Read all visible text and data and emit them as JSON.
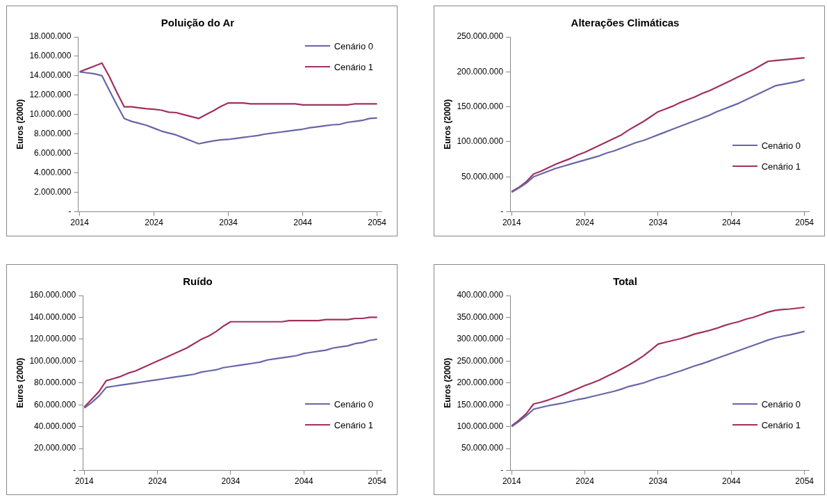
{
  "chart_data": [
    {
      "type": "line",
      "title": "Poluição do Ar",
      "ylabel": "Euros (2000)",
      "legend": "top right",
      "grid": false,
      "marker": "none",
      "line_style": "solid",
      "x": [
        2014,
        2015,
        2016,
        2017,
        2018,
        2019,
        2020,
        2021,
        2022,
        2023,
        2024,
        2025,
        2026,
        2027,
        2028,
        2029,
        2030,
        2031,
        2032,
        2033,
        2034,
        2035,
        2036,
        2037,
        2038,
        2039,
        2040,
        2041,
        2042,
        2043,
        2044,
        2045,
        2046,
        2047,
        2048,
        2049,
        2050,
        2051,
        2052,
        2053,
        2054
      ],
      "xlim": [
        2013.8,
        2054.6
      ],
      "xticks": [
        2014,
        2024,
        2034,
        2044,
        2054
      ],
      "ylim": [
        0,
        18000000
      ],
      "yticks": [
        {
          "value": 0,
          "label": "-"
        },
        {
          "value": 2000000,
          "label": "2.000.000"
        },
        {
          "value": 4000000,
          "label": "4.000.000"
        },
        {
          "value": 6000000,
          "label": "6.000.000"
        },
        {
          "value": 8000000,
          "label": "8.000.000"
        },
        {
          "value": 10000000,
          "label": "10.000.000"
        },
        {
          "value": 12000000,
          "label": "12.000.000"
        },
        {
          "value": 14000000,
          "label": "14.000.000"
        },
        {
          "value": 16000000,
          "label": "16.000.000"
        },
        {
          "value": 18000000,
          "label": "18.000.000"
        }
      ],
      "series": [
        {
          "name": "Cenário 0",
          "color": "#6666a8",
          "values": [
            14400000,
            14300000,
            14200000,
            14000000,
            12500000,
            11000000,
            9600000,
            9300000,
            9100000,
            8900000,
            8600000,
            8300000,
            8100000,
            7900000,
            7600000,
            7300000,
            7000000,
            7150000,
            7300000,
            7400000,
            7450000,
            7550000,
            7650000,
            7750000,
            7850000,
            8000000,
            8100000,
            8200000,
            8300000,
            8400000,
            8500000,
            8650000,
            8750000,
            8850000,
            8950000,
            9000000,
            9200000,
            9300000,
            9400000,
            9600000,
            9650000
          ]
        },
        {
          "name": "Cenário 1",
          "color": "#a0305e",
          "values": [
            14400000,
            14700000,
            15000000,
            15300000,
            13900000,
            12300000,
            10800000,
            10800000,
            10700000,
            10600000,
            10550000,
            10450000,
            10250000,
            10200000,
            10000000,
            9800000,
            9600000,
            10000000,
            10400000,
            10850000,
            11200000,
            11200000,
            11200000,
            11100000,
            11100000,
            11100000,
            11100000,
            11100000,
            11100000,
            11100000,
            11000000,
            11000000,
            11000000,
            11000000,
            11000000,
            11000000,
            11000000,
            11100000,
            11100000,
            11100000,
            11100000
          ]
        }
      ]
    },
    {
      "type": "line",
      "title": "Alterações Climáticas",
      "ylabel": "Euros (2000)",
      "legend": "bottom right",
      "grid": false,
      "marker": "none",
      "line_style": "solid",
      "x": [
        2014,
        2015,
        2016,
        2017,
        2018,
        2019,
        2020,
        2021,
        2022,
        2023,
        2024,
        2025,
        2026,
        2027,
        2028,
        2029,
        2030,
        2031,
        2032,
        2033,
        2034,
        2035,
        2036,
        2037,
        2038,
        2039,
        2040,
        2041,
        2042,
        2043,
        2044,
        2045,
        2046,
        2047,
        2048,
        2049,
        2050,
        2051,
        2052,
        2053,
        2054
      ],
      "xlim": [
        2013.8,
        2054.6
      ],
      "xticks": [
        2014,
        2024,
        2034,
        2044,
        2054
      ],
      "ylim": [
        0,
        250000000
      ],
      "yticks": [
        {
          "value": 0,
          "label": "-"
        },
        {
          "value": 50000000,
          "label": "50.000.000"
        },
        {
          "value": 100000000,
          "label": "100.000.000"
        },
        {
          "value": 150000000,
          "label": "150.000.000"
        },
        {
          "value": 200000000,
          "label": "200.000.000"
        },
        {
          "value": 250000000,
          "label": "250.000.000"
        }
      ],
      "series": [
        {
          "name": "Cenário 0",
          "color": "#6666a8",
          "values": [
            28000000,
            34000000,
            41000000,
            50000000,
            54000000,
            58000000,
            62000000,
            65000000,
            68000000,
            71000000,
            74000000,
            77000000,
            80000000,
            84000000,
            87000000,
            91000000,
            95000000,
            99000000,
            102000000,
            106000000,
            110000000,
            114000000,
            118000000,
            122000000,
            126000000,
            130000000,
            134000000,
            138000000,
            143000000,
            147000000,
            151000000,
            155000000,
            160000000,
            165000000,
            170000000,
            175000000,
            180000000,
            182000000,
            184000000,
            186000000,
            189000000
          ]
        },
        {
          "name": "Cenário 1",
          "color": "#a0305e",
          "values": [
            29000000,
            35000000,
            43000000,
            54000000,
            58000000,
            63000000,
            68000000,
            72000000,
            76000000,
            81000000,
            85000000,
            90000000,
            95000000,
            100000000,
            105000000,
            110000000,
            117000000,
            123000000,
            129000000,
            136000000,
            143000000,
            147000000,
            151000000,
            156000000,
            160000000,
            164000000,
            169000000,
            173000000,
            178000000,
            183000000,
            188000000,
            193000000,
            198000000,
            203000000,
            209000000,
            215000000,
            216000000,
            217000000,
            218000000,
            219000000,
            220000000
          ]
        }
      ]
    },
    {
      "type": "line",
      "title": "Ruído",
      "ylabel": "Euros (2000)",
      "legend": "bottom right",
      "grid": false,
      "marker": "none",
      "line_style": "solid",
      "x": [
        2014,
        2015,
        2016,
        2017,
        2018,
        2019,
        2020,
        2021,
        2022,
        2023,
        2024,
        2025,
        2026,
        2027,
        2028,
        2029,
        2030,
        2031,
        2032,
        2033,
        2034,
        2035,
        2036,
        2037,
        2038,
        2039,
        2040,
        2041,
        2042,
        2043,
        2044,
        2045,
        2046,
        2047,
        2048,
        2049,
        2050,
        2051,
        2052,
        2053,
        2054
      ],
      "xlim": [
        2013.8,
        2054.6
      ],
      "xticks": [
        2014,
        2024,
        2034,
        2044,
        2054
      ],
      "ylim": [
        0,
        160000000
      ],
      "yticks": [
        {
          "value": 0,
          "label": "-"
        },
        {
          "value": 20000000,
          "label": "20.000.000"
        },
        {
          "value": 40000000,
          "label": "40.000.000"
        },
        {
          "value": 60000000,
          "label": "60.000.000"
        },
        {
          "value": 80000000,
          "label": "80.000.000"
        },
        {
          "value": 100000000,
          "label": "100.000.000"
        },
        {
          "value": 120000000,
          "label": "120.000.000"
        },
        {
          "value": 140000000,
          "label": "140.000.000"
        },
        {
          "value": 160000000,
          "label": "160.000.000"
        }
      ],
      "series": [
        {
          "name": "Cenário 0",
          "color": "#6666a8",
          "values": [
            57000000,
            62000000,
            68000000,
            76000000,
            77000000,
            78000000,
            79000000,
            80000000,
            81000000,
            82000000,
            83000000,
            84000000,
            85000000,
            86000000,
            87000000,
            88000000,
            90000000,
            91000000,
            92000000,
            94000000,
            95000000,
            96000000,
            97000000,
            98000000,
            99000000,
            101000000,
            102000000,
            103000000,
            104000000,
            105000000,
            107000000,
            108000000,
            109000000,
            110000000,
            112000000,
            113000000,
            114000000,
            116000000,
            117000000,
            119000000,
            120000000
          ]
        },
        {
          "name": "Cenário 1",
          "color": "#a0305e",
          "values": [
            58000000,
            65000000,
            72000000,
            82000000,
            84000000,
            86000000,
            89000000,
            91000000,
            94000000,
            97000000,
            100000000,
            103000000,
            106000000,
            109000000,
            112000000,
            116000000,
            120000000,
            123000000,
            127000000,
            132000000,
            136000000,
            136000000,
            136000000,
            136000000,
            136000000,
            136000000,
            136000000,
            136000000,
            137000000,
            137000000,
            137000000,
            137000000,
            137000000,
            138000000,
            138000000,
            138000000,
            138000000,
            139000000,
            139000000,
            140000000,
            140000000
          ]
        }
      ]
    },
    {
      "type": "line",
      "title": "Total",
      "ylabel": "Euros (2000)",
      "legend": "bottom right",
      "grid": false,
      "marker": "none",
      "line_style": "solid",
      "x": [
        2014,
        2015,
        2016,
        2017,
        2018,
        2019,
        2020,
        2021,
        2022,
        2023,
        2024,
        2025,
        2026,
        2027,
        2028,
        2029,
        2030,
        2031,
        2032,
        2033,
        2034,
        2035,
        2036,
        2037,
        2038,
        2039,
        2040,
        2041,
        2042,
        2043,
        2044,
        2045,
        2046,
        2047,
        2048,
        2049,
        2050,
        2051,
        2052,
        2053,
        2054
      ],
      "xlim": [
        2013.8,
        2054.6
      ],
      "xticks": [
        2014,
        2024,
        2034,
        2044,
        2054
      ],
      "ylim": [
        0,
        400000000
      ],
      "yticks": [
        {
          "value": 0,
          "label": "-"
        },
        {
          "value": 50000000,
          "label": "50.000.000"
        },
        {
          "value": 100000000,
          "label": "100.000.000"
        },
        {
          "value": 150000000,
          "label": "150.000.000"
        },
        {
          "value": 200000000,
          "label": "200.000.000"
        },
        {
          "value": 250000000,
          "label": "250.000.000"
        },
        {
          "value": 300000000,
          "label": "300.000.000"
        },
        {
          "value": 350000000,
          "label": "350.000.000"
        },
        {
          "value": 400000000,
          "label": "400.000.000"
        }
      ],
      "series": [
        {
          "name": "Cenário 0",
          "color": "#6666a8",
          "values": [
            100000000,
            112000000,
            125000000,
            140000000,
            144000000,
            148000000,
            151000000,
            154000000,
            158000000,
            162000000,
            165000000,
            169000000,
            173000000,
            177000000,
            181000000,
            186000000,
            192000000,
            196000000,
            200000000,
            206000000,
            212000000,
            216000000,
            222000000,
            227000000,
            233000000,
            239000000,
            244000000,
            250000000,
            256000000,
            262000000,
            268000000,
            274000000,
            280000000,
            286000000,
            292000000,
            298000000,
            303000000,
            307000000,
            310000000,
            314000000,
            318000000
          ]
        },
        {
          "name": "Cenário 1",
          "color": "#a0305e",
          "values": [
            102000000,
            115000000,
            130000000,
            152000000,
            156000000,
            161000000,
            167000000,
            173000000,
            180000000,
            187000000,
            194000000,
            200000000,
            207000000,
            215000000,
            223000000,
            232000000,
            241000000,
            251000000,
            262000000,
            275000000,
            289000000,
            293000000,
            297000000,
            301000000,
            306000000,
            312000000,
            316000000,
            320000000,
            325000000,
            331000000,
            336000000,
            340000000,
            346000000,
            350000000,
            356000000,
            362000000,
            366000000,
            368000000,
            369000000,
            371000000,
            373000000
          ]
        }
      ]
    }
  ]
}
